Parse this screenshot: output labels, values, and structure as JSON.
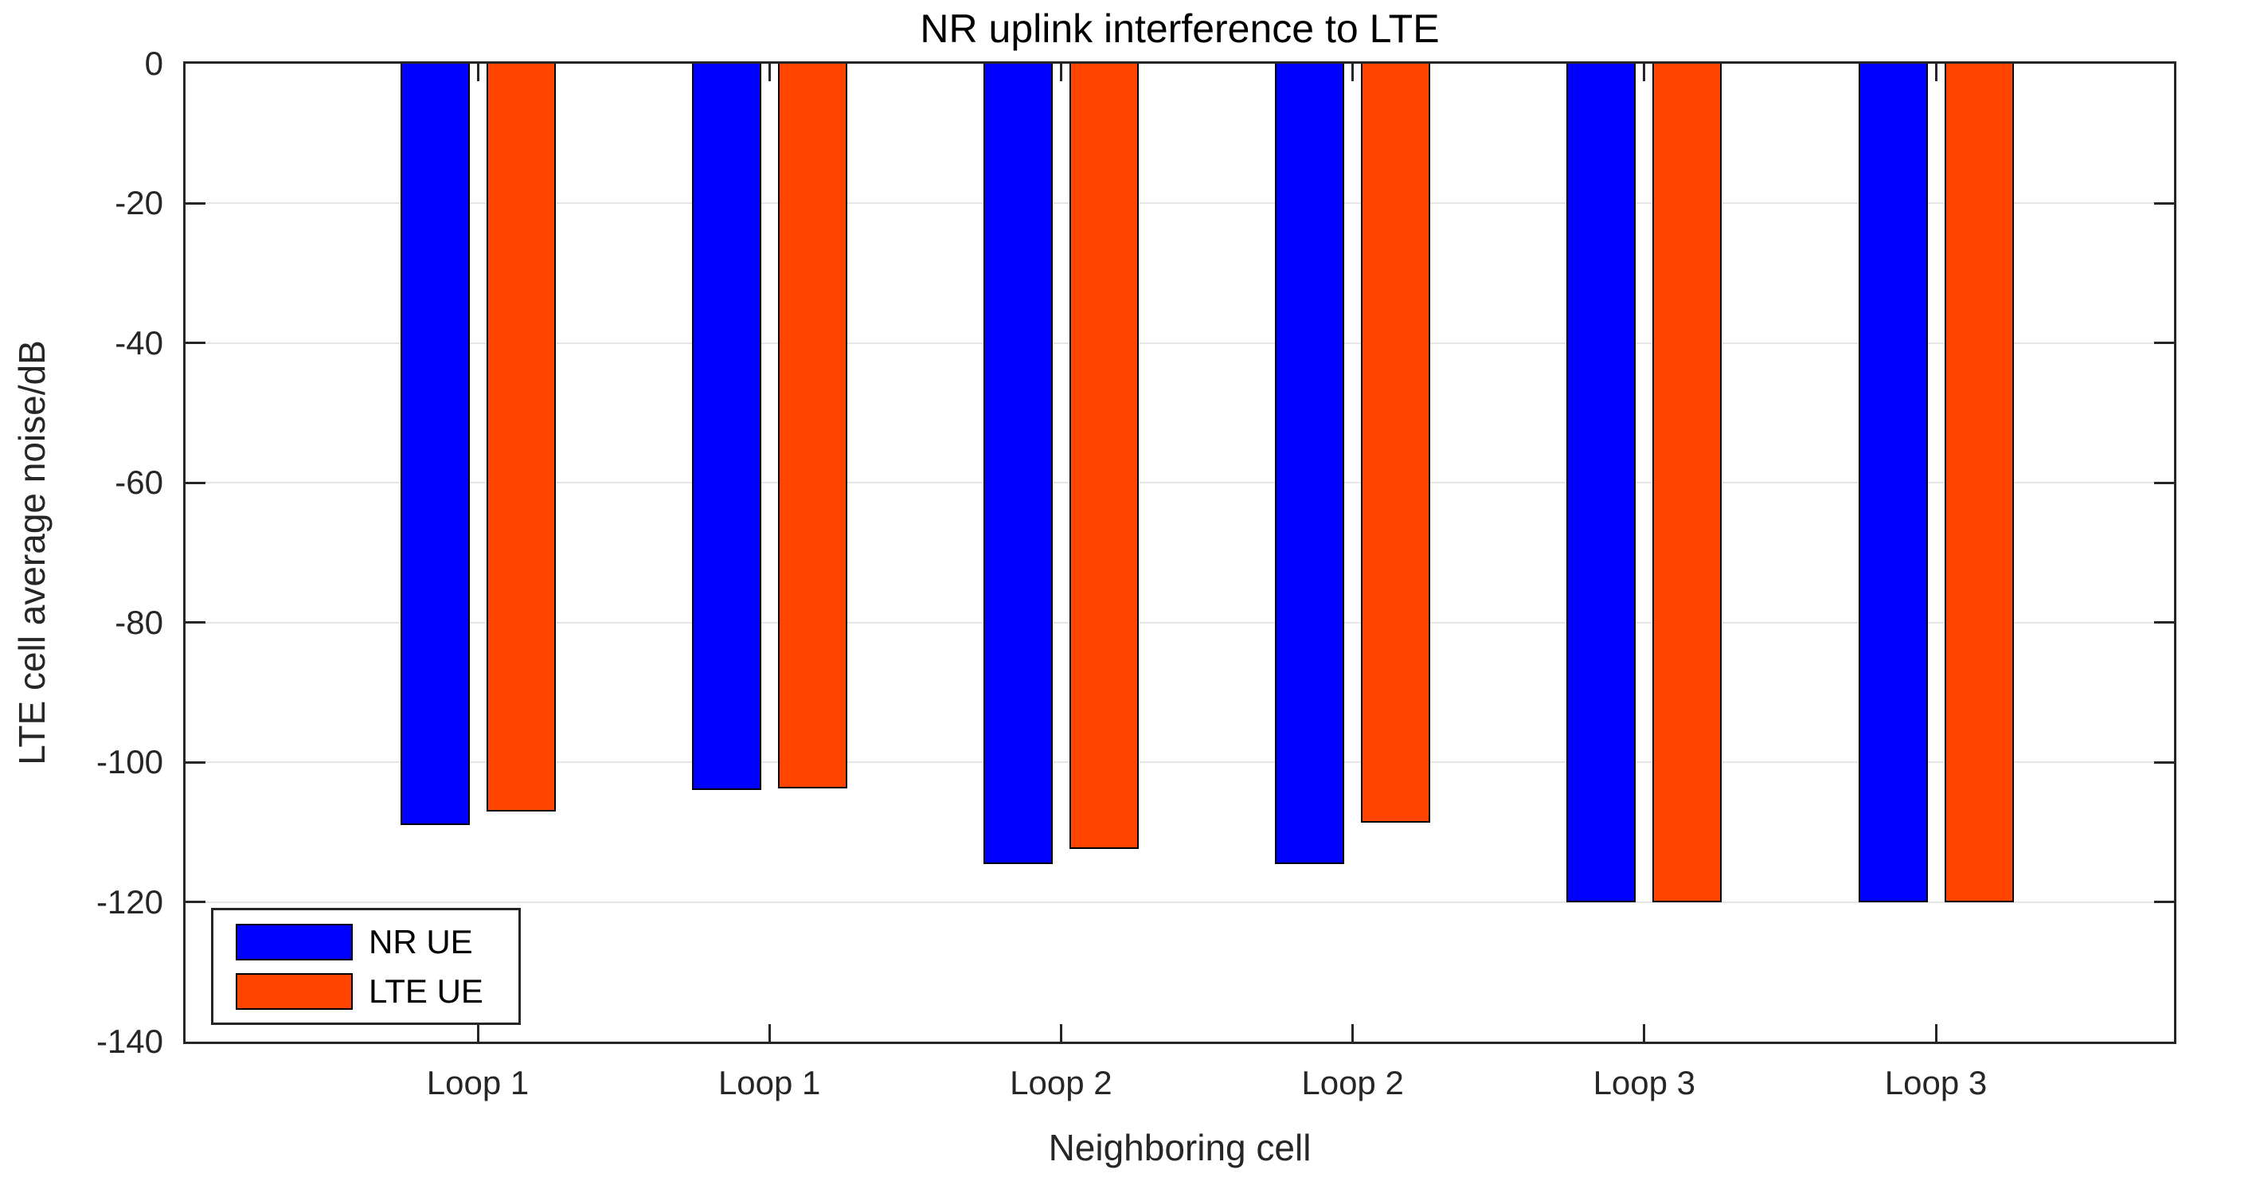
{
  "figure": {
    "background": "#ffffff"
  },
  "chart_data": {
    "type": "bar",
    "title": "NR uplink interference to LTE",
    "xlabel": "Neighboring cell",
    "ylabel": "LTE cell average noise/dB",
    "categories": [
      "Loop 1",
      "Loop 1",
      "Loop 2",
      "Loop 2",
      "Loop 3",
      "Loop 3"
    ],
    "series": [
      {
        "name": "NR UE",
        "color": "#0000FF",
        "values": [
          -109.0,
          -104.0,
          -114.6,
          -114.6,
          -120.0,
          -120.0
        ]
      },
      {
        "name": "LTE UE",
        "color": "#FF4500",
        "values": [
          -107.0,
          -103.7,
          -112.4,
          -108.6,
          -120.0,
          -120.0
        ]
      }
    ],
    "ylim": [
      -140,
      0
    ],
    "yticks": [
      0,
      -20,
      -40,
      -60,
      -80,
      -100,
      -120,
      -140
    ],
    "grid": "horizontal-only",
    "grid_color": "#e6e6e6",
    "axis_color": "#262626",
    "bar_edge_color": "#000000",
    "legend_position": "lower-left"
  }
}
